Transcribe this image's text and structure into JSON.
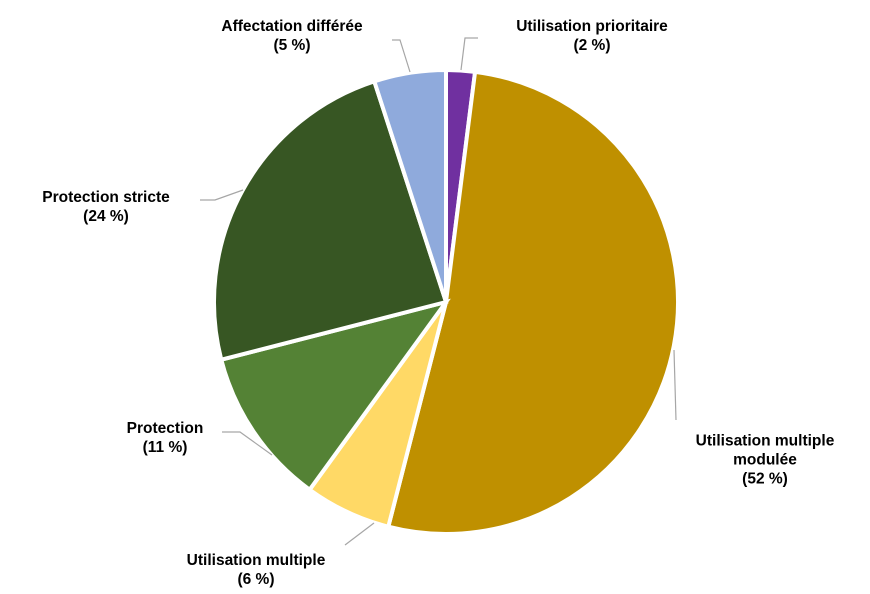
{
  "chart_data": {
    "type": "pie",
    "categories": [
      "Utilisation prioritaire",
      "Utilisation multiple modulée",
      "Utilisation multiple",
      "Protection",
      "Protection stricte",
      "Affectation différée"
    ],
    "values": [
      2,
      52,
      6,
      11,
      24,
      5
    ],
    "value_labels": [
      "(2 %)",
      "(52 %)",
      "(6 %)",
      "(11 %)",
      "(24 %)",
      "(5 %)"
    ],
    "colors": [
      "#7030a0",
      "#bf9000",
      "#ffd966",
      "#548235",
      "#375623",
      "#8faadc"
    ]
  }
}
